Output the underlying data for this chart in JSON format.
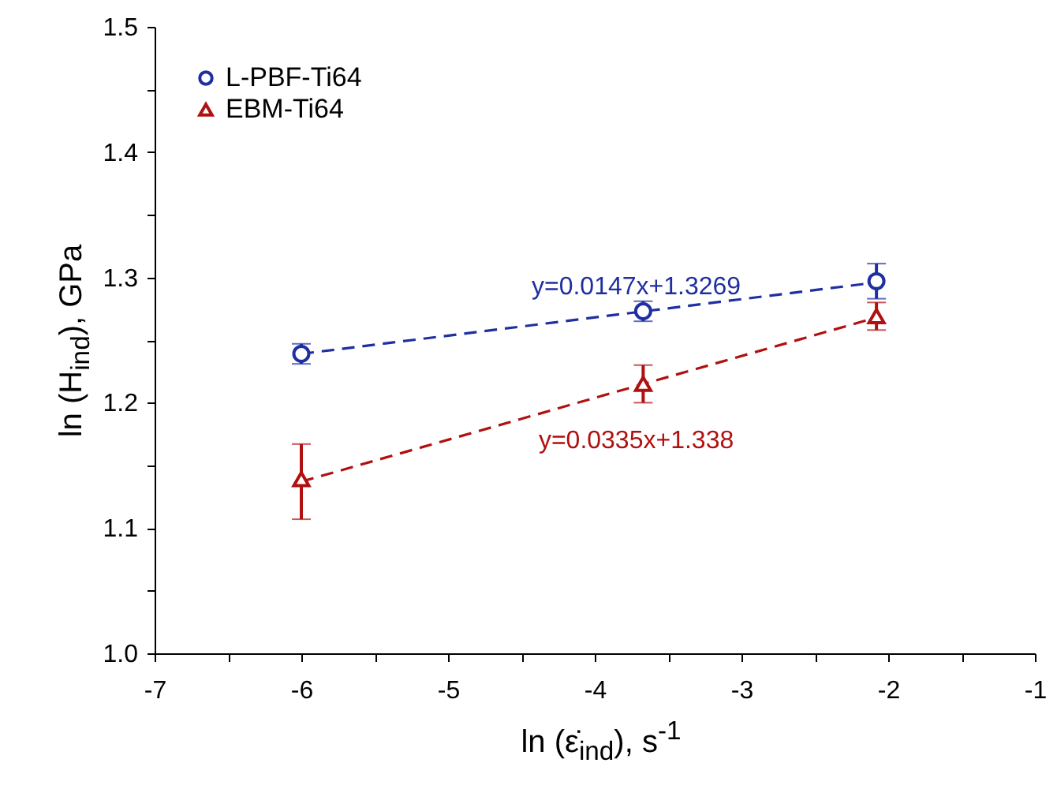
{
  "chart_data": {
    "type": "scatter",
    "xlabel": "ln (ε̇$_{ind}$), s$^{-1}$",
    "ylabel": "ln (H$_{ind}$), GPa",
    "xlim": [
      -7,
      -1
    ],
    "xticks": [
      -7,
      {
        "value": -6.5,
        "label": null
      },
      -6,
      {
        "value": -5.5,
        "label": null
      },
      -5,
      {
        "value": -4.5,
        "label": null
      },
      -4,
      {
        "value": -3.5,
        "label": null
      },
      -3,
      {
        "value": -2.5,
        "label": null
      },
      -2,
      {
        "value": -1.5,
        "label": null
      },
      -1
    ],
    "ylim": [
      1.0,
      1.5
    ],
    "yticks": [
      {
        "value": 1.0,
        "label": "1.0"
      },
      {
        "value": 1.05,
        "label": null
      },
      1.1,
      {
        "value": 1.15,
        "label": null
      },
      1.2,
      {
        "value": 1.25,
        "label": null
      },
      1.3,
      {
        "value": 1.35,
        "label": null
      },
      1.4,
      {
        "value": 1.45,
        "label": null
      },
      1.5
    ],
    "legend": "top left",
    "series": [
      {
        "name": "L-PBF-Ti64",
        "marker": "circle",
        "color": "#1f2fa0",
        "x": [
          -6,
          -3.67,
          -2.08
        ],
        "values": [
          1.239,
          1.273,
          1.297
        ],
        "errors": [
          0.008,
          0.008,
          0.014
        ]
      },
      {
        "name": "EBM-Ti64",
        "marker": "triangle",
        "color": "#b01010",
        "x": [
          -6,
          -3.67,
          -2.08
        ],
        "values": [
          1.139,
          1.215,
          1.269
        ],
        "errors": [
          [
            1.107,
            1.167
          ],
          [
            1.2,
            1.23
          ],
          [
            1.258,
            1.28
          ]
        ]
      },
      {
        "type": "line",
        "line_style": "dashed",
        "color": "#1f2fa0",
        "x": [
          -6,
          -2.08
        ],
        "values": [
          1.239,
          1.296
        ]
      },
      {
        "type": "line",
        "line_style": "dashed",
        "color": "#b01010",
        "x": [
          -6,
          -2.08
        ],
        "values": [
          1.137,
          1.268
        ]
      }
    ],
    "annotations": [
      "y=0.0147x+1.3269",
      "y=0.0335x+1.338"
    ]
  }
}
